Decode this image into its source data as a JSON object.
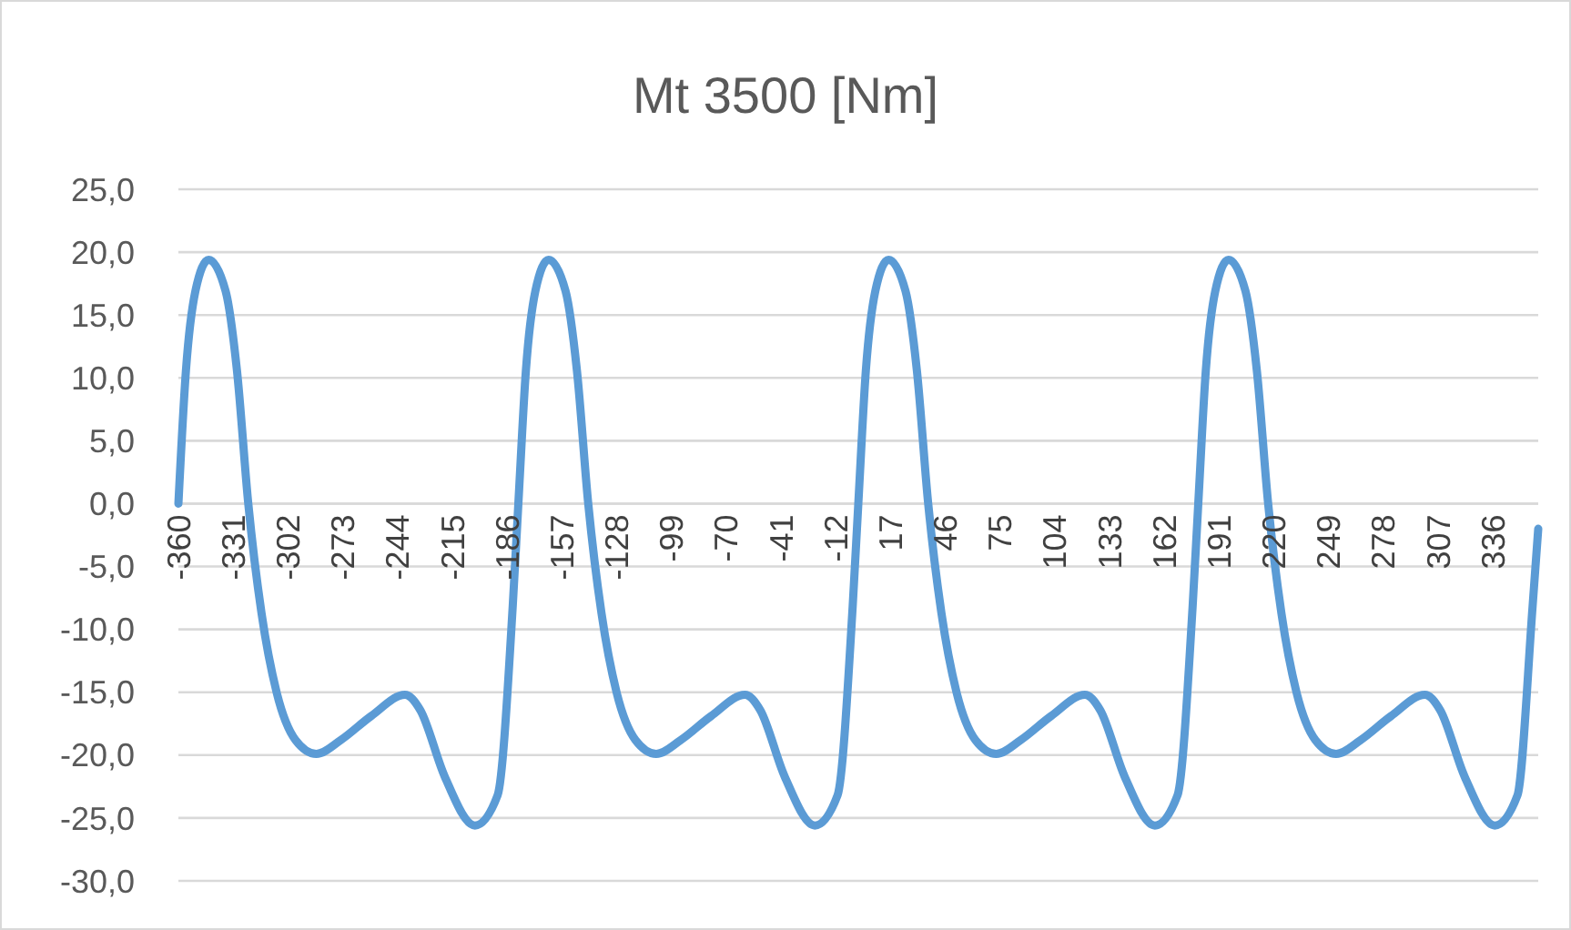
{
  "chart_data": {
    "type": "line",
    "title": "Mt 3500 [Nm]",
    "x": [
      -360,
      -356,
      -351,
      -344,
      -335,
      -329,
      -323,
      -316,
      -308,
      -298,
      -287,
      -274,
      -258,
      -240,
      -232,
      -219,
      -203,
      -191,
      -183,
      -180,
      -176,
      -171,
      -164,
      -155,
      -149,
      -143,
      -136,
      -128,
      -118,
      -107,
      -94,
      -78,
      -60,
      -52,
      -39,
      -23,
      -11,
      -3,
      0,
      4,
      9,
      16,
      25,
      31,
      37,
      44,
      52,
      62,
      73,
      86,
      102,
      120,
      128,
      141,
      157,
      169,
      177,
      180,
      184,
      189,
      196,
      205,
      211,
      217,
      224,
      232,
      242,
      253,
      266,
      282,
      300,
      308,
      321,
      337,
      349,
      357,
      360
    ],
    "series": [
      {
        "color": "#5b9bd5",
        "values": [
          0,
          10.6,
          16.9,
          19.4,
          16.9,
          10.6,
          0,
          -8.7,
          -15,
          -18.8,
          -19.9,
          -18.8,
          -16.9,
          -15.2,
          -16.4,
          -21.7,
          -25.6,
          -23.2,
          -8.2,
          0,
          10.6,
          16.9,
          19.4,
          16.9,
          10.6,
          0,
          -8.7,
          -15,
          -18.8,
          -19.9,
          -18.8,
          -16.9,
          -15.2,
          -16.4,
          -21.7,
          -25.6,
          -23.2,
          -8.2,
          0,
          10.6,
          16.9,
          19.4,
          16.9,
          10.6,
          0,
          -8.7,
          -15,
          -18.8,
          -19.9,
          -18.8,
          -16.9,
          -15.2,
          -16.4,
          -21.7,
          -25.6,
          -23.2,
          -8.2,
          0,
          10.6,
          16.9,
          19.4,
          16.9,
          10.6,
          0,
          -8.7,
          -15,
          -18.8,
          -19.9,
          -18.8,
          -16.9,
          -15.2,
          -16.4,
          -21.7,
          -25.6,
          -23.2,
          -8.2,
          -2
        ]
      }
    ],
    "xlim": [
      -360,
      360
    ],
    "xticks": [
      -360,
      -331,
      -302,
      -273,
      -244,
      -215,
      -186,
      -157,
      -128,
      -99,
      -70,
      -41,
      -12,
      17,
      46,
      75,
      104,
      133,
      162,
      191,
      220,
      249,
      278,
      307,
      336
    ],
    "ylim": [
      -30,
      25
    ],
    "yticks": [
      {
        "value": 25,
        "label": "25,0"
      },
      {
        "value": 20,
        "label": "20,0"
      },
      {
        "value": 15,
        "label": "15,0"
      },
      {
        "value": 10,
        "label": "10,0"
      },
      {
        "value": 5,
        "label": "5,0"
      },
      {
        "value": 0,
        "label": "0,0"
      },
      {
        "value": -5,
        "label": "-5,0"
      },
      {
        "value": -10,
        "label": "-10,0"
      },
      {
        "value": -15,
        "label": "-15,0"
      },
      {
        "value": -20,
        "label": "-20,0"
      },
      {
        "value": -25,
        "label": "-25,0"
      },
      {
        "value": -30,
        "label": "-30,0"
      }
    ],
    "grid": "y",
    "marker": "none",
    "line_style": "solid"
  }
}
